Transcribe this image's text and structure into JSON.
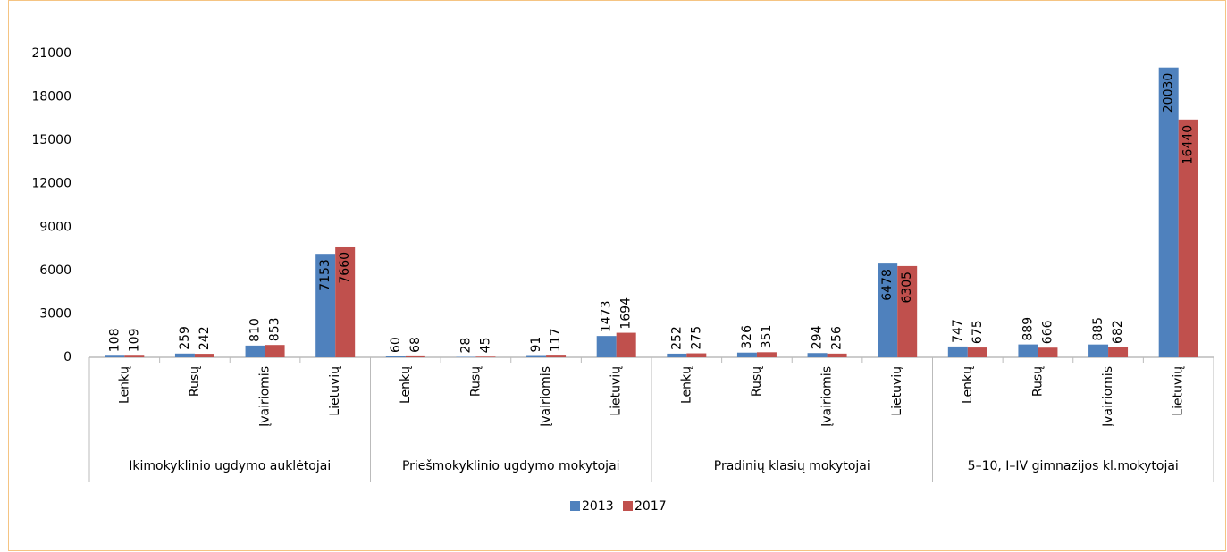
{
  "chart_data": {
    "type": "bar",
    "groups": [
      "Ikimokyklinio ugdymo auklėtojai",
      "Priešmokyklinio ugdymo mokytojai",
      "Pradinių klasių mokytojai",
      "5–10, I–IV gimnazijos kl.mokytojai"
    ],
    "categories": [
      "Lenkų",
      "Rusų",
      "Įvairiomis",
      "Lietuvių",
      "Lenkų",
      "Rusų",
      "Įvairiomis",
      "Lietuvių",
      "Lenkų",
      "Rusų",
      "Įvairiomis",
      "Lietuvių",
      "Lenkų",
      "Rusų",
      "Įvairiomis",
      "Lietuvių"
    ],
    "series": [
      {
        "name": "2013",
        "color": "#4f81bd",
        "values": [
          108,
          259,
          810,
          7153,
          60,
          28,
          91,
          1473,
          252,
          326,
          294,
          6478,
          747,
          889,
          885,
          20030
        ]
      },
      {
        "name": "2017",
        "color": "#c0504d",
        "values": [
          109,
          242,
          853,
          7660,
          68,
          45,
          117,
          1694,
          275,
          351,
          256,
          6305,
          675,
          666,
          682,
          16440
        ]
      }
    ],
    "ylim": [
      0,
      21000
    ],
    "yticks": [
      0,
      3000,
      6000,
      9000,
      12000,
      15000,
      18000,
      21000
    ],
    "legend": "bottom"
  }
}
